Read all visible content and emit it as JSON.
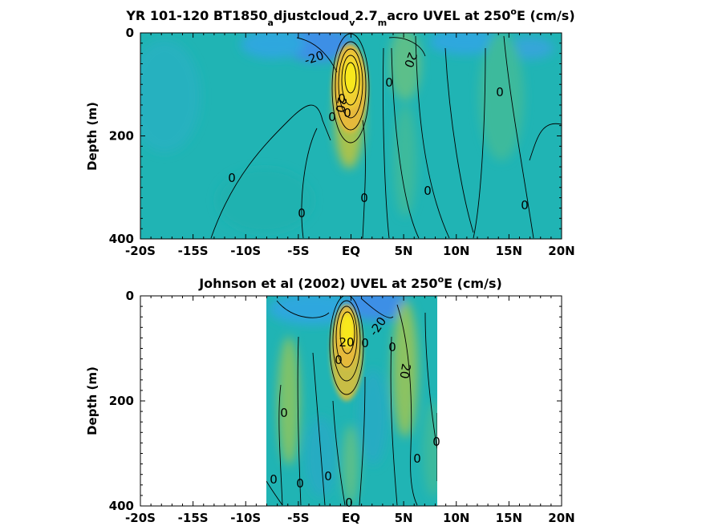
{
  "figure_title_parts": {
    "top": {
      "p1": "YR 101-120 BT1850",
      "s1": "a",
      "p2": "djustcloud",
      "s2": "v",
      "p3": "2.7",
      "s3": "m",
      "p4": "acro UVEL at 250",
      "sup": "o",
      "p5": "E (cm/s)"
    },
    "bottom": {
      "p1": "Johnson et al (2002) UVEL at 250",
      "sup": "o",
      "p2": "E (cm/s)"
    }
  },
  "colors": {
    "negative_deep": "#3e8fe6",
    "negative": "#2ea7de",
    "background": "#20b4b4",
    "weak_positive": "#5cbf8a",
    "positive": "#a8c24e",
    "strong_positive": "#e6b93a",
    "core": "#f8e81c",
    "contour_line": "#000000"
  },
  "chart_data": [
    {
      "type": "heatmap",
      "title": "YR 101-120 BT1850_adjustcloud_v2.7_macro UVEL at 250°E (cm/s)",
      "xlabel": "",
      "ylabel": "Depth (m)",
      "xlim": [
        -20,
        20
      ],
      "ylim": [
        400,
        0
      ],
      "y_reversed": true,
      "x_ticks": [
        -20,
        -15,
        -10,
        -5,
        0,
        5,
        10,
        15,
        20
      ],
      "x_tick_labels": [
        "-20S",
        "-15S",
        "-10S",
        "-5S",
        "EQ",
        "5N",
        "10N",
        "15N",
        "20N"
      ],
      "y_ticks": [
        0,
        200,
        400
      ],
      "y_tick_labels": [
        "0",
        "200",
        "400"
      ],
      "data_extent_lat": [
        -20,
        20
      ],
      "contour_labels": [
        "-20",
        "20",
        "0",
        "0",
        "0",
        "0",
        "0",
        "0",
        "0",
        "0",
        "0",
        "0",
        "20"
      ],
      "features": [
        {
          "kind": "jet",
          "lat": 0,
          "depth_top": 30,
          "depth_bottom": 210,
          "core_depth": 90,
          "peak_value": 100
        },
        {
          "kind": "westward",
          "lat": -5,
          "depth_top": 0,
          "depth_bottom": 90,
          "value": -20
        },
        {
          "kind": "eastward",
          "lat": 5.5,
          "depth_top": 0,
          "depth_bottom": 120,
          "value": 20
        }
      ]
    },
    {
      "type": "heatmap",
      "title": "Johnson et al (2002) UVEL at 250°E (cm/s)",
      "xlabel": "",
      "ylabel": "Depth (m)",
      "xlim": [
        -20,
        20
      ],
      "ylim": [
        400,
        0
      ],
      "y_reversed": true,
      "x_ticks": [
        -20,
        -15,
        -10,
        -5,
        0,
        5,
        10,
        15,
        20
      ],
      "x_tick_labels": [
        "-20S",
        "-15S",
        "-10S",
        "-5S",
        "EQ",
        "5N",
        "10N",
        "15N",
        "20N"
      ],
      "y_ticks": [
        0,
        200,
        400
      ],
      "y_tick_labels": [
        "0",
        "200",
        "400"
      ],
      "data_extent_lat": [
        -8,
        8
      ],
      "contour_labels": [
        "20",
        "-20",
        "0",
        "0",
        "0",
        "0",
        "0",
        "0",
        "0",
        "0",
        "0",
        "0",
        "20"
      ],
      "features": [
        {
          "kind": "jet",
          "lat": 0,
          "depth_top": 20,
          "depth_bottom": 190,
          "core_depth": 70,
          "peak_value": 100
        },
        {
          "kind": "westward",
          "lat": 1.5,
          "depth_top": 0,
          "depth_bottom": 60,
          "value": -20
        },
        {
          "kind": "eastward",
          "lat": 5.2,
          "depth_top": 40,
          "depth_bottom": 400,
          "value": 20
        }
      ]
    }
  ]
}
